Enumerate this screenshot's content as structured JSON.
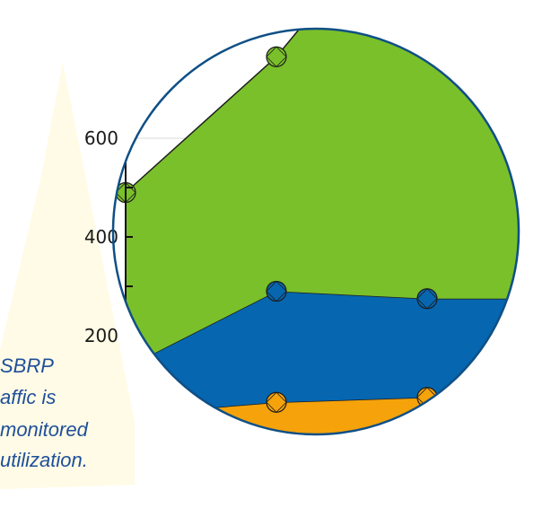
{
  "callout": {
    "lines": [
      "SBRP",
      "affic is",
      "monitored",
      "utilization."
    ]
  },
  "colors": {
    "green": "#7ac02a",
    "blue": "#0666b0",
    "orange": "#f5a20b",
    "lens_border": "#0f4f86",
    "callout_fill": "#fffbe6",
    "callout_text": "#1f4f9a"
  },
  "chart_data": {
    "type": "area",
    "stacked": true,
    "x": [
      1,
      2,
      3,
      4
    ],
    "series": [
      {
        "color": "#f5a20b",
        "values": [
          40,
          65,
          75,
          80
        ]
      },
      {
        "color": "#0666b0",
        "values": [
          95,
          225,
          200,
          195
        ]
      },
      {
        "color": "#7ac02a",
        "values": [
          355,
          475,
          860,
          900
        ]
      }
    ],
    "markers_on": [
      true,
      true,
      true,
      false
    ],
    "y_ticks": [
      {
        "value": 200,
        "label": "200"
      },
      {
        "value": 400,
        "label": "400"
      },
      {
        "value": 600,
        "label": "600"
      }
    ],
    "y_minor_ticks": [
      300,
      500,
      700
    ],
    "ylim": [
      0,
      900
    ],
    "grid": true
  }
}
